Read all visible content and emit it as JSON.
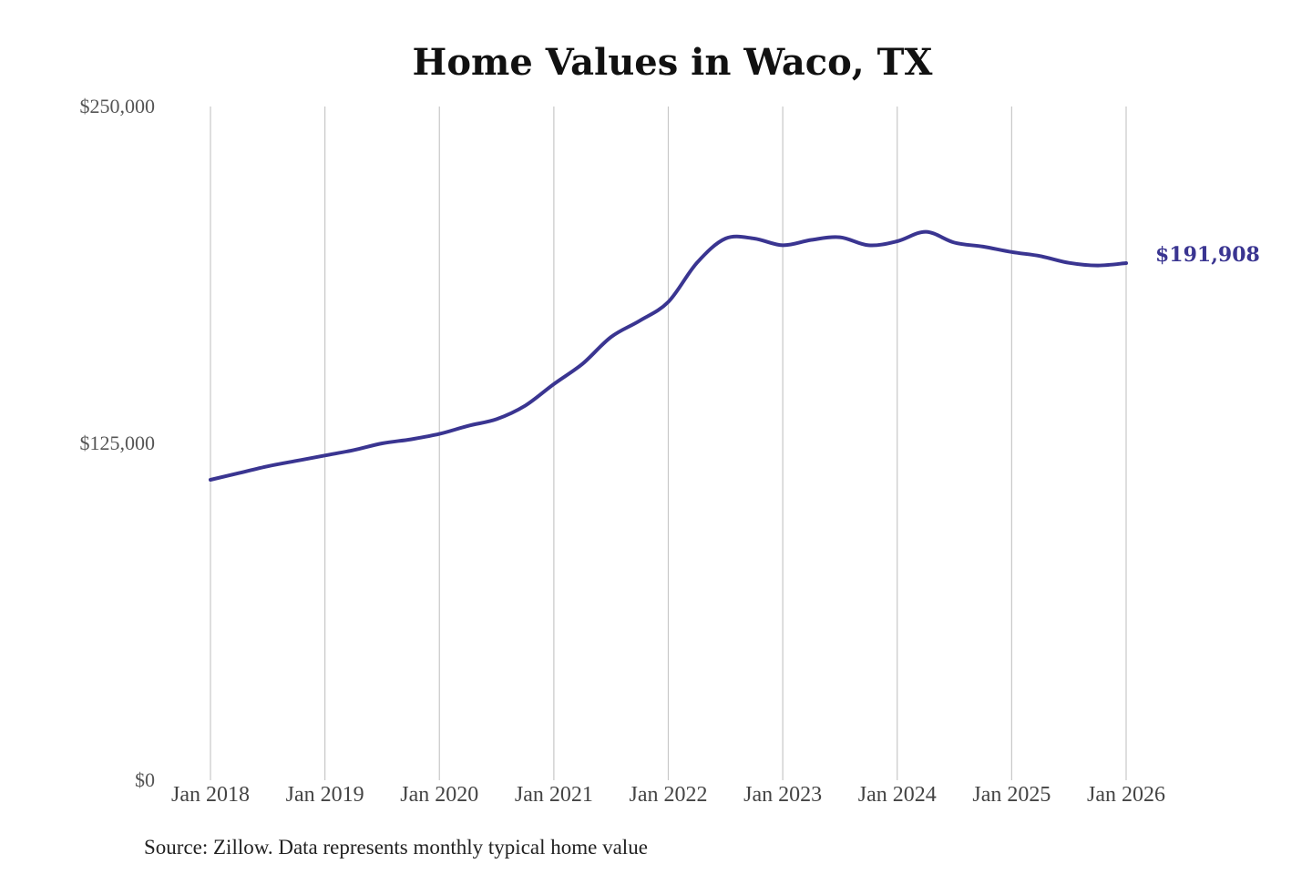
{
  "chart_data": {
    "type": "line",
    "title": "Home Values in Waco, TX",
    "xlabel": "",
    "ylabel": "",
    "ylim": [
      0,
      250000
    ],
    "yticks": [
      {
        "value": 0,
        "label": "$0"
      },
      {
        "value": 125000,
        "label": "$125,000"
      },
      {
        "value": 250000,
        "label": "$250,000"
      }
    ],
    "xticks": [
      "Jan 2018",
      "Jan 2019",
      "Jan 2020",
      "Jan 2021",
      "Jan 2022",
      "Jan 2023",
      "Jan 2024",
      "Jan 2025",
      "Jan 2026"
    ],
    "grid": "vertical",
    "legend": "none",
    "colors": {
      "line": "#3a3591"
    },
    "end_label": "$191,908",
    "series": [
      {
        "x": [
          "2018-01",
          "2018-04",
          "2018-07",
          "2018-10",
          "2019-01",
          "2019-04",
          "2019-07",
          "2019-10",
          "2020-01",
          "2020-04",
          "2020-07",
          "2020-10",
          "2021-01",
          "2021-04",
          "2021-07",
          "2021-10",
          "2022-01",
          "2022-04",
          "2022-07",
          "2022-10",
          "2023-01",
          "2023-04",
          "2023-07",
          "2023-10",
          "2024-01",
          "2024-04",
          "2024-07",
          "2024-10",
          "2025-01",
          "2025-04",
          "2025-07",
          "2025-10",
          "2026-01"
        ],
        "values": [
          111500,
          114000,
          116500,
          118500,
          120500,
          122500,
          125000,
          126500,
          128500,
          131500,
          134000,
          139000,
          147000,
          154500,
          164500,
          170500,
          177500,
          192000,
          201000,
          201000,
          198500,
          200500,
          201500,
          198500,
          200000,
          203500,
          199500,
          198000,
          196000,
          194500,
          192000,
          191000,
          191908
        ]
      }
    ]
  },
  "source_text": "Source: Zillow. Data represents monthly typical home value"
}
